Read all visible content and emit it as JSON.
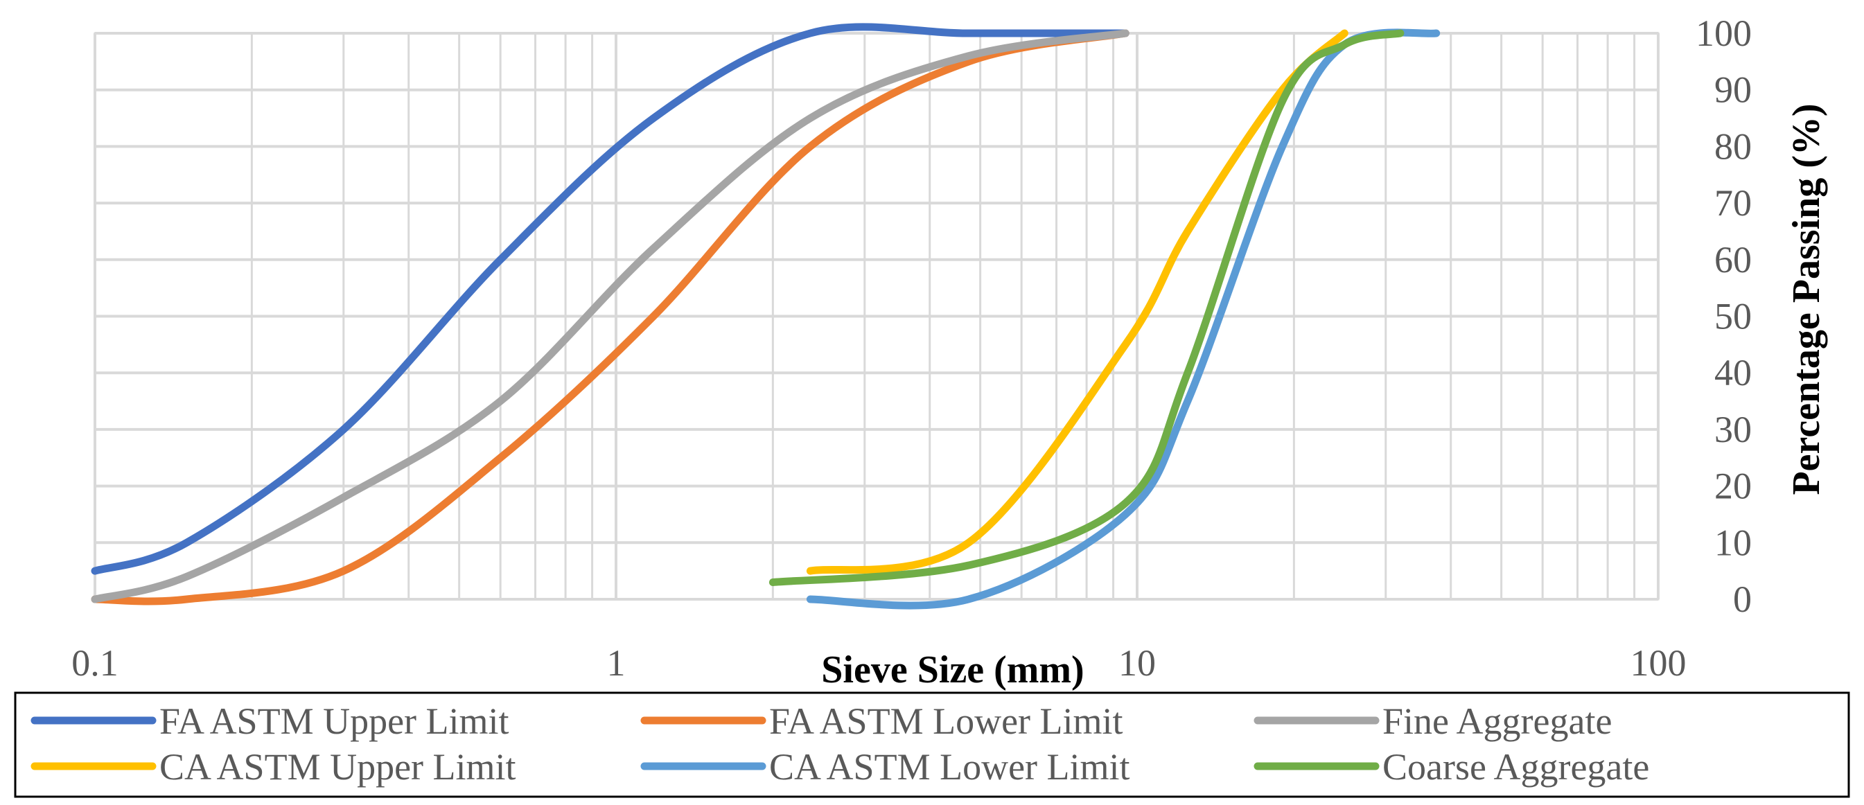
{
  "chart_data": {
    "type": "line",
    "xscale": "log",
    "xlim": [
      0.1,
      100
    ],
    "ylim": [
      0,
      100
    ],
    "xticks": [
      0.1,
      1,
      10,
      100
    ],
    "xtick_labels": [
      "0.1",
      "1",
      "10",
      "100"
    ],
    "yticks": [
      0,
      10,
      20,
      30,
      40,
      50,
      60,
      70,
      80,
      90,
      100
    ],
    "ytick_labels": [
      "0",
      "10",
      "20",
      "30",
      "40",
      "50",
      "60",
      "70",
      "80",
      "90",
      "100"
    ],
    "xlabel": "Sieve Size (mm)",
    "ylabel": "Percentage Passing (%)",
    "grid": "major and minor",
    "legend_position": "bottom",
    "series": [
      {
        "name": "FA ASTM Upper Limit",
        "color": "#4472C4",
        "x": [
          0.1,
          0.15,
          0.3,
          0.6,
          1.18,
          2.36,
          4.75,
          9.5
        ],
        "y": [
          5,
          10,
          30,
          60,
          85,
          100,
          100,
          100
        ]
      },
      {
        "name": "FA ASTM Lower Limit",
        "color": "#ED7D31",
        "x": [
          0.1,
          0.15,
          0.3,
          0.6,
          1.18,
          2.36,
          4.75,
          9.5
        ],
        "y": [
          0,
          0,
          5,
          25,
          50,
          80,
          95,
          100
        ]
      },
      {
        "name": "Fine Aggregate",
        "color": "#A5A5A5",
        "x": [
          0.1,
          0.15,
          0.3,
          0.6,
          1.18,
          2.36,
          4.75,
          9.5
        ],
        "y": [
          0,
          4,
          18,
          35,
          62,
          85,
          96,
          100
        ]
      },
      {
        "name": "CA ASTM Upper Limit",
        "color": "#FFC000",
        "x": [
          2.36,
          4.75,
          9.5,
          12.5,
          19,
          25
        ],
        "y": [
          5,
          10,
          45,
          65,
          90,
          100
        ]
      },
      {
        "name": "CA ASTM Lower Limit",
        "color": "#5B9BD5",
        "x": [
          2.36,
          4.75,
          9.5,
          12.5,
          19,
          25,
          37.5
        ],
        "y": [
          0,
          0,
          15,
          35,
          80,
          98,
          100
        ]
      },
      {
        "name": "Coarse Aggregate",
        "color": "#70AD47",
        "x": [
          2,
          4.75,
          9.5,
          12.5,
          19,
          25,
          32
        ],
        "y": [
          3,
          6,
          17,
          40,
          88,
          98,
          100
        ]
      }
    ]
  }
}
